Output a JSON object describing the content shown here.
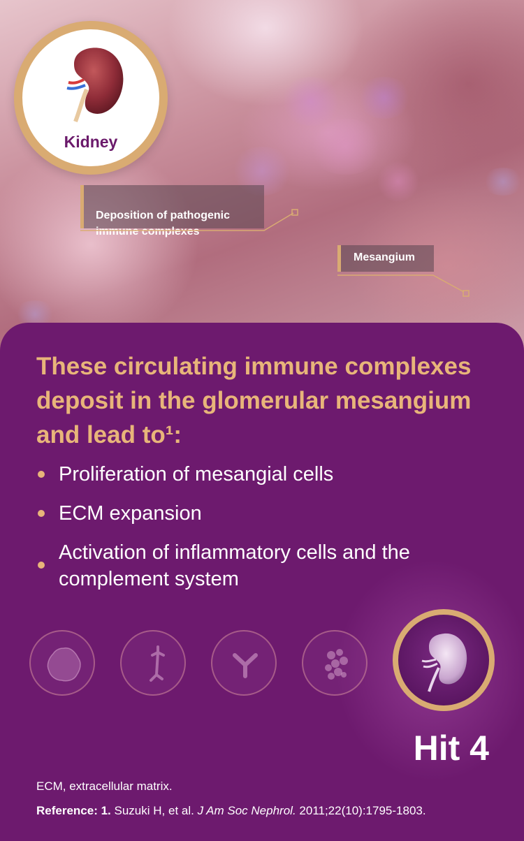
{
  "hero": {
    "badge_label": "Kidney",
    "callout_deposition": "Deposition of pathogenic\nimmune complexes",
    "callout_mesangium": "Mesangium"
  },
  "main": {
    "heading": "These circulating immune complexes deposit in the glomerular mesangium and lead to¹:",
    "bullets": [
      "Proliferation of mesangial cells",
      "ECM expansion",
      "Activation of inflammatory cells and the complement system"
    ],
    "hit_label": "Hit 4",
    "hit_icons": [
      "cell-icon",
      "immunoglobulin-chain-icon",
      "antibody-icon",
      "immune-complex-icon",
      "kidney-icon"
    ]
  },
  "footer": {
    "abbreviation": "ECM, extracellular matrix.",
    "reference_label": "Reference: 1.",
    "reference_authors": "Suzuki H, et al.",
    "reference_journal": "J Am Soc Nephrol.",
    "reference_citation": "2011;22(10):1795-1803."
  },
  "colors": {
    "panel_background": "#6d1a6e",
    "accent_gold": "#e8b57a",
    "badge_ring": "#d9ab72",
    "kidney_label": "#6b1a6b"
  }
}
